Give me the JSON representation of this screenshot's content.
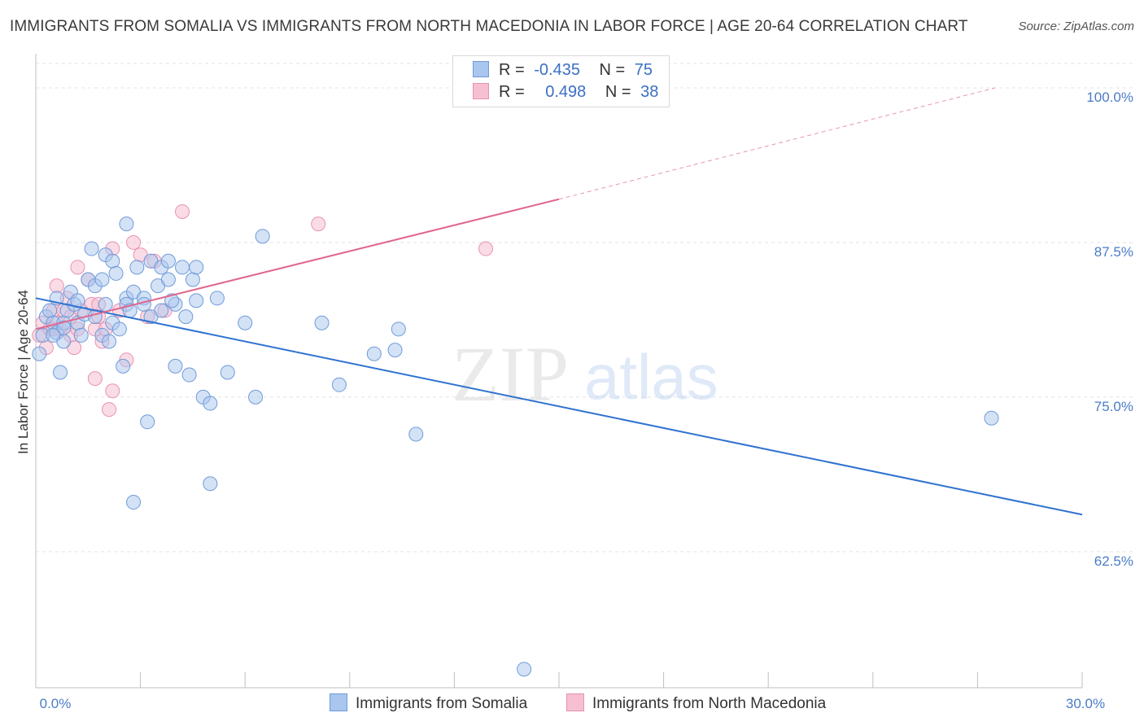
{
  "title": "IMMIGRANTS FROM SOMALIA VS IMMIGRANTS FROM NORTH MACEDONIA IN LABOR FORCE | AGE 20-64 CORRELATION CHART",
  "source": "Source: ZipAtlas.com",
  "watermark": {
    "zip": "ZIP",
    "atlas": "atlas"
  },
  "legend": {
    "rows": [
      {
        "r_label": "R =",
        "r_value": "-0.435",
        "n_label": "N =",
        "n_value": "75"
      },
      {
        "r_label": "R =",
        "r_value": "0.498",
        "n_label": "N =",
        "n_value": "38"
      }
    ]
  },
  "colors": {
    "somalia_fill": "#a9c6ee",
    "somalia_stroke": "#6f9bd9",
    "somalia_line": "#2f72d0",
    "macedonia_fill": "#f6bfd2",
    "macedonia_stroke": "#e992b1",
    "macedonia_line": "#e0678f",
    "tick_text": "#4a7cc7",
    "grid": "#e3e3e3"
  },
  "chart_data": {
    "type": "scatter",
    "title": "IMMIGRANTS FROM SOMALIA VS IMMIGRANTS FROM NORTH MACEDONIA IN LABOR FORCE | AGE 20-64 CORRELATION CHART",
    "xlabel": "",
    "ylabel": "In Labor Force | Age 20-64",
    "xlim": [
      0,
      30
    ],
    "ylim": [
      51.5,
      102.5
    ],
    "x_ticks": [
      0,
      3,
      6,
      9,
      12,
      15,
      18,
      21,
      24,
      27,
      30
    ],
    "x_tick_labels": {
      "0": "0.0%",
      "30": "30.0%"
    },
    "y_ticks": [
      62.5,
      75.0,
      87.5,
      100.0
    ],
    "y_tick_labels": [
      "62.5%",
      "75.0%",
      "87.5%",
      "100.0%"
    ],
    "grid": true,
    "legend_position": "top-center",
    "series": [
      {
        "name": "Immigrants from Somalia",
        "points": [
          [
            0.1,
            78.5
          ],
          [
            0.2,
            80.0
          ],
          [
            0.3,
            81.5
          ],
          [
            0.4,
            82.0
          ],
          [
            0.5,
            81.0
          ],
          [
            0.6,
            83.0
          ],
          [
            0.6,
            80.2
          ],
          [
            0.7,
            77.0
          ],
          [
            0.8,
            81.0
          ],
          [
            0.9,
            82.0
          ],
          [
            0.8,
            80.6
          ],
          [
            1.0,
            83.5
          ],
          [
            1.1,
            82.5
          ],
          [
            0.8,
            79.5
          ],
          [
            1.2,
            81.0
          ],
          [
            1.3,
            80.0
          ],
          [
            1.4,
            81.7
          ],
          [
            1.5,
            84.5
          ],
          [
            1.6,
            87.0
          ],
          [
            1.7,
            84.0
          ],
          [
            1.9,
            80.0
          ],
          [
            1.9,
            84.5
          ],
          [
            2.0,
            82.5
          ],
          [
            2.0,
            86.5
          ],
          [
            2.1,
            79.5
          ],
          [
            2.2,
            86.0
          ],
          [
            2.3,
            85.0
          ],
          [
            2.2,
            81.0
          ],
          [
            2.4,
            80.5
          ],
          [
            2.5,
            77.5
          ],
          [
            2.6,
            83.0
          ],
          [
            2.6,
            82.5
          ],
          [
            2.7,
            82.0
          ],
          [
            2.6,
            89.0
          ],
          [
            2.8,
            83.5
          ],
          [
            2.9,
            85.5
          ],
          [
            3.1,
            83.0
          ],
          [
            3.3,
            86.0
          ],
          [
            3.5,
            84.0
          ],
          [
            3.2,
            73.0
          ],
          [
            3.3,
            81.5
          ],
          [
            3.1,
            82.5
          ],
          [
            3.6,
            82.0
          ],
          [
            3.6,
            85.5
          ],
          [
            3.8,
            84.5
          ],
          [
            3.8,
            86.0
          ],
          [
            4.0,
            82.5
          ],
          [
            4.2,
            85.5
          ],
          [
            4.0,
            77.5
          ],
          [
            4.3,
            81.5
          ],
          [
            4.4,
            76.8
          ],
          [
            4.5,
            84.5
          ],
          [
            4.6,
            85.5
          ],
          [
            4.6,
            82.8
          ],
          [
            4.8,
            75.0
          ],
          [
            5.0,
            74.5
          ],
          [
            5.2,
            83.0
          ],
          [
            5.5,
            77.0
          ],
          [
            5.0,
            68.0
          ],
          [
            6.0,
            81.0
          ],
          [
            6.3,
            75.0
          ],
          [
            6.5,
            88.0
          ],
          [
            8.2,
            81.0
          ],
          [
            8.7,
            76.0
          ],
          [
            9.7,
            78.5
          ],
          [
            10.3,
            78.8
          ],
          [
            10.4,
            80.5
          ],
          [
            10.9,
            72.0
          ],
          [
            14.0,
            53.0
          ],
          [
            27.4,
            73.3
          ],
          [
            2.8,
            66.5
          ],
          [
            0.5,
            80.0
          ],
          [
            1.7,
            81.5
          ],
          [
            3.9,
            82.8
          ],
          [
            1.2,
            82.8
          ]
        ]
      },
      {
        "name": "Immigrants from North Macedonia",
        "points": [
          [
            0.1,
            80.0
          ],
          [
            0.2,
            81.0
          ],
          [
            0.3,
            79.0
          ],
          [
            0.4,
            80.5
          ],
          [
            0.5,
            82.0
          ],
          [
            0.5,
            80.5
          ],
          [
            0.6,
            81.0
          ],
          [
            0.6,
            84.0
          ],
          [
            0.7,
            80.5
          ],
          [
            0.8,
            82.0
          ],
          [
            0.9,
            83.0
          ],
          [
            1.0,
            81.5
          ],
          [
            1.0,
            80.0
          ],
          [
            1.1,
            79.0
          ],
          [
            1.2,
            85.5
          ],
          [
            1.2,
            80.5
          ],
          [
            1.3,
            82.0
          ],
          [
            1.5,
            84.5
          ],
          [
            1.6,
            82.5
          ],
          [
            1.7,
            76.5
          ],
          [
            1.7,
            80.5
          ],
          [
            1.8,
            82.5
          ],
          [
            1.8,
            81.5
          ],
          [
            1.9,
            79.5
          ],
          [
            2.0,
            80.5
          ],
          [
            2.1,
            74.0
          ],
          [
            2.2,
            87.0
          ],
          [
            2.2,
            75.5
          ],
          [
            2.4,
            82.0
          ],
          [
            2.6,
            78.0
          ],
          [
            2.8,
            87.5
          ],
          [
            3.0,
            86.5
          ],
          [
            3.2,
            81.5
          ],
          [
            3.4,
            86.0
          ],
          [
            3.7,
            82.0
          ],
          [
            4.2,
            90.0
          ],
          [
            8.1,
            89.0
          ],
          [
            12.9,
            87.0
          ]
        ]
      }
    ],
    "trendlines": [
      {
        "series": "Immigrants from Somalia",
        "x": [
          0,
          30
        ],
        "y": [
          83.0,
          65.5
        ],
        "style": "solid"
      },
      {
        "series": "Immigrants from North Macedonia",
        "x": [
          0,
          15.0
        ],
        "y": [
          80.5,
          91.0
        ],
        "style": "solid"
      },
      {
        "series": "Immigrants from North Macedonia",
        "x": [
          15.0,
          27.5
        ],
        "y": [
          91.0,
          100.0
        ],
        "style": "dashed"
      }
    ]
  }
}
